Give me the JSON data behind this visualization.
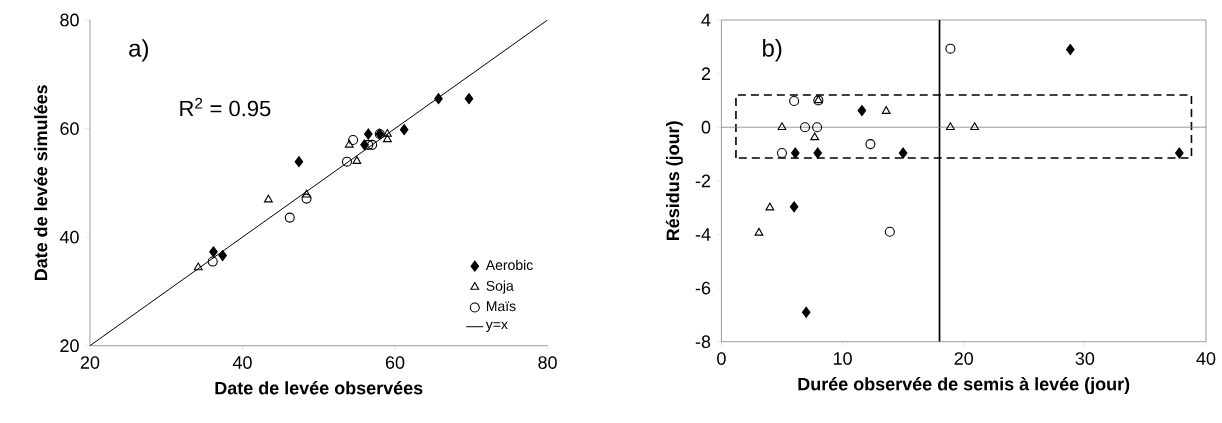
{
  "chart_data": [
    {
      "type": "scatter",
      "xlabel": "Date de levée observées",
      "ylabel": "Date de levée simulées",
      "annotations": [
        "a)",
        "R$^{2}$ = 0.95"
      ],
      "xlim": [
        20,
        80
      ],
      "ylim": [
        20,
        80
      ],
      "xticks": [
        20,
        40,
        60,
        80
      ],
      "yticks": [
        20,
        40,
        60,
        80
      ],
      "legend": "bottom right",
      "series": [
        {
          "name": "Aerobic",
          "color": "#000000",
          "marker": "diamond",
          "x": [
            36.2,
            37.4,
            47.4,
            56,
            56.5,
            58,
            61.2,
            65.7,
            69.7
          ],
          "values": [
            37.3,
            36.6,
            53.9,
            57,
            59,
            59,
            59.8,
            65.5,
            65.5
          ]
        },
        {
          "name": "Soja",
          "color": "#000000",
          "marker": "triangle",
          "x": [
            34.2,
            43.4,
            48.4,
            54,
            55,
            59,
            59
          ],
          "values": [
            34.4,
            46.9,
            47.8,
            57,
            54,
            58,
            59
          ]
        },
        {
          "name": "Maïs",
          "color": "#000000",
          "marker": "circle",
          "x": [
            36.1,
            46.2,
            48.4,
            53.7,
            54.5,
            56.5,
            57,
            58
          ],
          "values": [
            35.5,
            43.6,
            47.1,
            53.9,
            57.9,
            57,
            57,
            59
          ]
        },
        {
          "name": "y=x",
          "type": "line",
          "color": "#000000",
          "marker": "none",
          "x": [
            20,
            80
          ],
          "values": [
            20,
            80
          ]
        }
      ]
    },
    {
      "type": "scatter",
      "xlabel": "Durée observée de semis à levée (jour)",
      "ylabel": "Résidus (jour)",
      "annotations": [
        "b)"
      ],
      "xlim": [
        0,
        40
      ],
      "ylim": [
        -8,
        4
      ],
      "xticks": [
        0,
        10,
        20,
        30,
        40
      ],
      "yticks": [
        -8,
        -6,
        -4,
        -2,
        0,
        2,
        4
      ],
      "ref_lines": [
        {
          "axis": "x",
          "value": 18,
          "color": "#000000",
          "line_style": "solid"
        },
        {
          "axis": "y",
          "value": 0,
          "color": "#808080",
          "line_style": "solid"
        }
      ],
      "bands": [
        {
          "axis": "y",
          "from": -1.15,
          "to": 1.2,
          "color": "#ffffff"
        }
      ],
      "series": [
        {
          "color": "#000000",
          "marker": "diamond",
          "x": [
            6.1,
            7.95,
            11.6,
            15.0,
            6.0,
            7.0,
            28.8,
            37.8
          ],
          "values": [
            -0.96,
            -0.96,
            0.62,
            -0.96,
            -2.97,
            -6.9,
            2.9,
            -0.96
          ]
        },
        {
          "color": "#000000",
          "marker": "triangle",
          "x": [
            5.0,
            7.7,
            8.0,
            13.6,
            4.0,
            3.1,
            18.9,
            20.9
          ],
          "values": [
            0,
            -0.38,
            1.0,
            0.6,
            -3.0,
            -3.94,
            0,
            0
          ]
        },
        {
          "color": "#000000",
          "marker": "circle",
          "x": [
            6.9,
            7.9,
            5.0,
            12.3,
            13.9,
            6.0,
            8.0,
            18.9
          ],
          "values": [
            0,
            0,
            -0.96,
            -0.63,
            -3.9,
            0.98,
            1.0,
            2.93
          ]
        }
      ]
    }
  ]
}
